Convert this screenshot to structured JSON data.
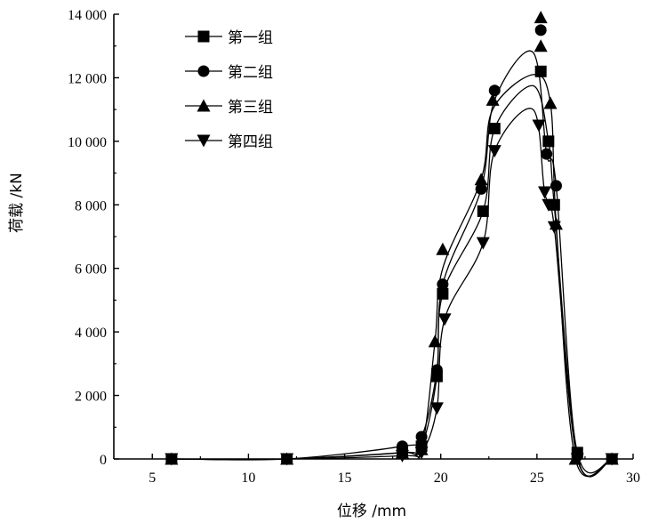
{
  "chart_data": {
    "type": "line",
    "xlabel": "位移 /mm",
    "ylabel": "荷载 /kN",
    "xlim": [
      3,
      30
    ],
    "ylim": [
      0,
      14000
    ],
    "xticks": [
      5,
      10,
      15,
      20,
      25,
      30
    ],
    "yticks": [
      0,
      2000,
      4000,
      6000,
      8000,
      10000,
      12000,
      14000
    ],
    "xtick_labels": [
      "5",
      "10",
      "15",
      "20",
      "25",
      "30"
    ],
    "ytick_labels": [
      "0",
      "2 000",
      "4 000",
      "6 000",
      "8 000",
      "10 000",
      "12 000",
      "14 000"
    ],
    "grid": false,
    "legend_position": "top-left",
    "series": [
      {
        "name": "第一组",
        "marker": "square",
        "x": [
          6,
          12,
          18,
          19,
          19.8,
          20.1,
          22.2,
          22.8,
          25.2,
          25.6,
          25.9,
          27.1,
          28.9
        ],
        "y": [
          0,
          0,
          200,
          400,
          2600,
          5200,
          7800,
          10400,
          12200,
          10000,
          8000,
          200,
          0
        ]
      },
      {
        "name": "第二组",
        "marker": "circle",
        "x": [
          6,
          12,
          18,
          19,
          19.8,
          20.1,
          22.1,
          22.8,
          25.2,
          25.5,
          26,
          27.1,
          28.9
        ],
        "y": [
          0,
          0,
          400,
          700,
          2800,
          5500,
          8500,
          11600,
          13500,
          9600,
          8600,
          100,
          0
        ]
      },
      {
        "name": "第三组",
        "marker": "triangle-up",
        "x": [
          6,
          12,
          18,
          19,
          19.7,
          20.1,
          22.1,
          22.7,
          25.2,
          25.2,
          25.7,
          26,
          27,
          28.9
        ],
        "y": [
          0,
          0,
          200,
          300,
          3700,
          6600,
          8800,
          11300,
          13900,
          13000,
          11200,
          7400,
          0,
          0
        ]
      },
      {
        "name": "第四组",
        "marker": "triangle-down",
        "x": [
          6,
          12,
          18,
          19,
          19.8,
          20.2,
          22.2,
          22.8,
          25.1,
          25.4,
          25.6,
          25.9,
          27.1,
          28.9
        ],
        "y": [
          0,
          0,
          100,
          200,
          1600,
          4400,
          6800,
          9700,
          10500,
          8400,
          8000,
          7300,
          0,
          0
        ]
      }
    ],
    "curves": [
      {
        "x": [
          6,
          12,
          18,
          19,
          19.8,
          20.1,
          22.2,
          22.8,
          24.8,
          25.6,
          25.9,
          27.1,
          28.9
        ],
        "y": [
          0,
          0,
          200,
          400,
          2600,
          5200,
          7800,
          10400,
          11750,
          10000,
          8000,
          200,
          0
        ]
      },
      {
        "x": [
          6,
          12,
          18,
          19,
          19.8,
          20.1,
          22.1,
          22.8,
          24.8,
          25.5,
          26,
          27.1,
          28.9
        ],
        "y": [
          0,
          0,
          400,
          700,
          2800,
          5500,
          8500,
          11300,
          12800,
          9600,
          8600,
          100,
          0
        ]
      },
      {
        "x": [
          6,
          12,
          18,
          19,
          19.7,
          20.1,
          22.1,
          22.7,
          24.8,
          25.7,
          26,
          27,
          28.9
        ],
        "y": [
          0,
          0,
          200,
          300,
          3700,
          6000,
          8800,
          11000,
          12100,
          11200,
          7400,
          0,
          0
        ]
      },
      {
        "x": [
          6,
          12,
          18,
          19,
          19.8,
          20.2,
          22.2,
          22.8,
          24.8,
          25.4,
          25.9,
          27.1,
          28.9
        ],
        "y": [
          0,
          0,
          100,
          200,
          1600,
          4400,
          6800,
          9700,
          11000,
          8400,
          7300,
          0,
          0
        ]
      }
    ]
  }
}
